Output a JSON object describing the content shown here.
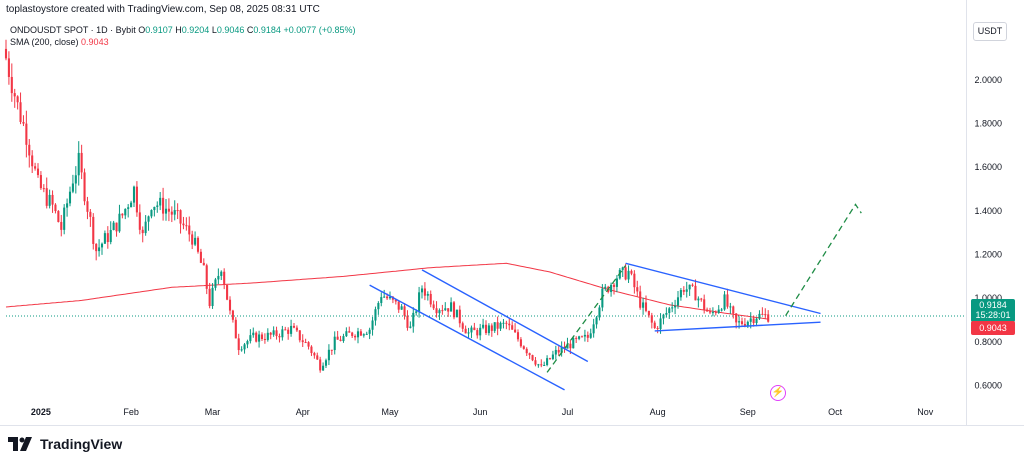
{
  "header": {
    "creator_line": "toplastoystore created with TradingView.com, Sep 08, 2025 08:31 UTC"
  },
  "symbol": {
    "name": "ONDOUSDT SPOT · 1D · Bybit",
    "o_label": "O",
    "o_value": "0.9107",
    "h_label": "H",
    "h_value": "0.9204",
    "l_label": "L",
    "l_value": "0.9046",
    "c_label": "C",
    "c_value": "0.9184",
    "change": "+0.0077 (+0.85%)"
  },
  "indicator": {
    "label": "SMA (200, close)",
    "value": "0.9043"
  },
  "currency": "USDT",
  "price_tags": {
    "last_price": "0.9184",
    "countdown": "15:28:01",
    "sma_value": "0.9043"
  },
  "branding": {
    "logo_text": "TradingView"
  },
  "colors": {
    "up": "#089981",
    "down": "#f23645",
    "sma": "#f23645",
    "trendline": "#2962ff",
    "projection": "#1e8c45",
    "last_price_line": "#089981"
  },
  "chart_data": {
    "type": "candlestick",
    "y_ticks": [
      0.6,
      0.8,
      1.0,
      1.2,
      1.4,
      1.6,
      1.8,
      2.0
    ],
    "y_tick_labels": [
      "0.6000",
      "0.8000",
      "1.0000",
      "1.2000",
      "1.4000",
      "1.6000",
      "1.8000",
      "2.0000"
    ],
    "ylim": [
      0.52,
      2.16
    ],
    "x_start": "2024-12-20",
    "x_end": "2025-11-15",
    "x_ticks": [
      {
        "date": "2025-01-01",
        "label": "2025",
        "bold": true
      },
      {
        "date": "2025-02-01",
        "label": "Feb"
      },
      {
        "date": "2025-03-01",
        "label": "Mar"
      },
      {
        "date": "2025-04-01",
        "label": "Apr"
      },
      {
        "date": "2025-05-01",
        "label": "May"
      },
      {
        "date": "2025-06-01",
        "label": "Jun"
      },
      {
        "date": "2025-07-01",
        "label": "Jul"
      },
      {
        "date": "2025-08-01",
        "label": "Aug"
      },
      {
        "date": "2025-09-01",
        "label": "Sep"
      },
      {
        "date": "2025-10-01",
        "label": "Oct"
      },
      {
        "date": "2025-11-01",
        "label": "Nov"
      }
    ],
    "close_anchors": [
      [
        "2024-12-20",
        2.1
      ],
      [
        "2024-12-24",
        1.88
      ],
      [
        "2024-12-27",
        1.75
      ],
      [
        "2024-12-31",
        1.52
      ],
      [
        "2025-01-05",
        1.42
      ],
      [
        "2025-01-08",
        1.32
      ],
      [
        "2025-01-12",
        1.55
      ],
      [
        "2025-01-14",
        1.62
      ],
      [
        "2025-01-20",
        1.22
      ],
      [
        "2025-01-25",
        1.3
      ],
      [
        "2025-01-29",
        1.38
      ],
      [
        "2025-02-02",
        1.5
      ],
      [
        "2025-02-05",
        1.28
      ],
      [
        "2025-02-08",
        1.44
      ],
      [
        "2025-02-12",
        1.42
      ],
      [
        "2025-02-16",
        1.38
      ],
      [
        "2025-02-22",
        1.28
      ],
      [
        "2025-02-26",
        1.12
      ],
      [
        "2025-02-28",
        0.98
      ],
      [
        "2025-03-04",
        1.15
      ],
      [
        "2025-03-07",
        0.93
      ],
      [
        "2025-03-10",
        0.78
      ],
      [
        "2025-03-15",
        0.82
      ],
      [
        "2025-03-22",
        0.83
      ],
      [
        "2025-03-28",
        0.86
      ],
      [
        "2025-04-03",
        0.78
      ],
      [
        "2025-04-07",
        0.69
      ],
      [
        "2025-04-12",
        0.8
      ],
      [
        "2025-04-18",
        0.84
      ],
      [
        "2025-04-24",
        0.86
      ],
      [
        "2025-04-28",
        1.02
      ],
      [
        "2025-05-05",
        0.95
      ],
      [
        "2025-05-08",
        0.86
      ],
      [
        "2025-05-12",
        1.05
      ],
      [
        "2025-05-17",
        0.96
      ],
      [
        "2025-05-22",
        0.96
      ],
      [
        "2025-05-28",
        0.84
      ],
      [
        "2025-06-04",
        0.86
      ],
      [
        "2025-06-10",
        0.88
      ],
      [
        "2025-06-16",
        0.78
      ],
      [
        "2025-06-22",
        0.68
      ],
      [
        "2025-06-27",
        0.75
      ],
      [
        "2025-07-02",
        0.79
      ],
      [
        "2025-07-08",
        0.82
      ],
      [
        "2025-07-13",
        1.02
      ],
      [
        "2025-07-18",
        1.1
      ],
      [
        "2025-07-22",
        1.12
      ],
      [
        "2025-07-26",
        0.98
      ],
      [
        "2025-07-31",
        0.86
      ],
      [
        "2025-08-05",
        0.95
      ],
      [
        "2025-08-10",
        1.05
      ],
      [
        "2025-08-14",
        1.02
      ],
      [
        "2025-08-19",
        0.92
      ],
      [
        "2025-08-24",
        0.99
      ],
      [
        "2025-08-28",
        0.88
      ],
      [
        "2025-09-01",
        0.9
      ],
      [
        "2025-09-04",
        0.92
      ],
      [
        "2025-09-08",
        0.9184
      ]
    ],
    "sma_anchors": [
      [
        "2024-12-20",
        0.96
      ],
      [
        "2025-01-15",
        0.99
      ],
      [
        "2025-02-15",
        1.05
      ],
      [
        "2025-03-15",
        1.07
      ],
      [
        "2025-04-15",
        1.1
      ],
      [
        "2025-05-15",
        1.14
      ],
      [
        "2025-06-10",
        1.16
      ],
      [
        "2025-06-25",
        1.12
      ],
      [
        "2025-07-15",
        1.04
      ],
      [
        "2025-08-05",
        0.97
      ],
      [
        "2025-08-25",
        0.93
      ],
      [
        "2025-09-08",
        0.9043
      ]
    ],
    "last_price": 0.9184,
    "sma_last": 0.9043,
    "trendlines": [
      {
        "id": "falling-channel-upper",
        "points": [
          [
            "2025-05-12",
            1.13
          ],
          [
            "2025-07-08",
            0.71
          ]
        ]
      },
      {
        "id": "falling-channel-lower",
        "points": [
          [
            "2025-04-24",
            1.06
          ],
          [
            "2025-06-30",
            0.58
          ]
        ]
      },
      {
        "id": "triangle-upper",
        "points": [
          [
            "2025-07-21",
            1.16
          ],
          [
            "2025-09-26",
            0.93
          ]
        ]
      },
      {
        "id": "triangle-lower",
        "points": [
          [
            "2025-07-31",
            0.85
          ],
          [
            "2025-09-26",
            0.89
          ]
        ]
      }
    ],
    "projections": [
      {
        "id": "breakout-projection-1",
        "points": [
          [
            "2025-06-24",
            0.66
          ],
          [
            "2025-07-21",
            1.15
          ]
        ]
      },
      {
        "id": "breakout-projection-2",
        "points": [
          [
            "2025-09-14",
            0.92
          ],
          [
            "2025-10-08",
            1.43
          ],
          [
            "2025-10-10",
            1.39
          ]
        ]
      }
    ]
  }
}
